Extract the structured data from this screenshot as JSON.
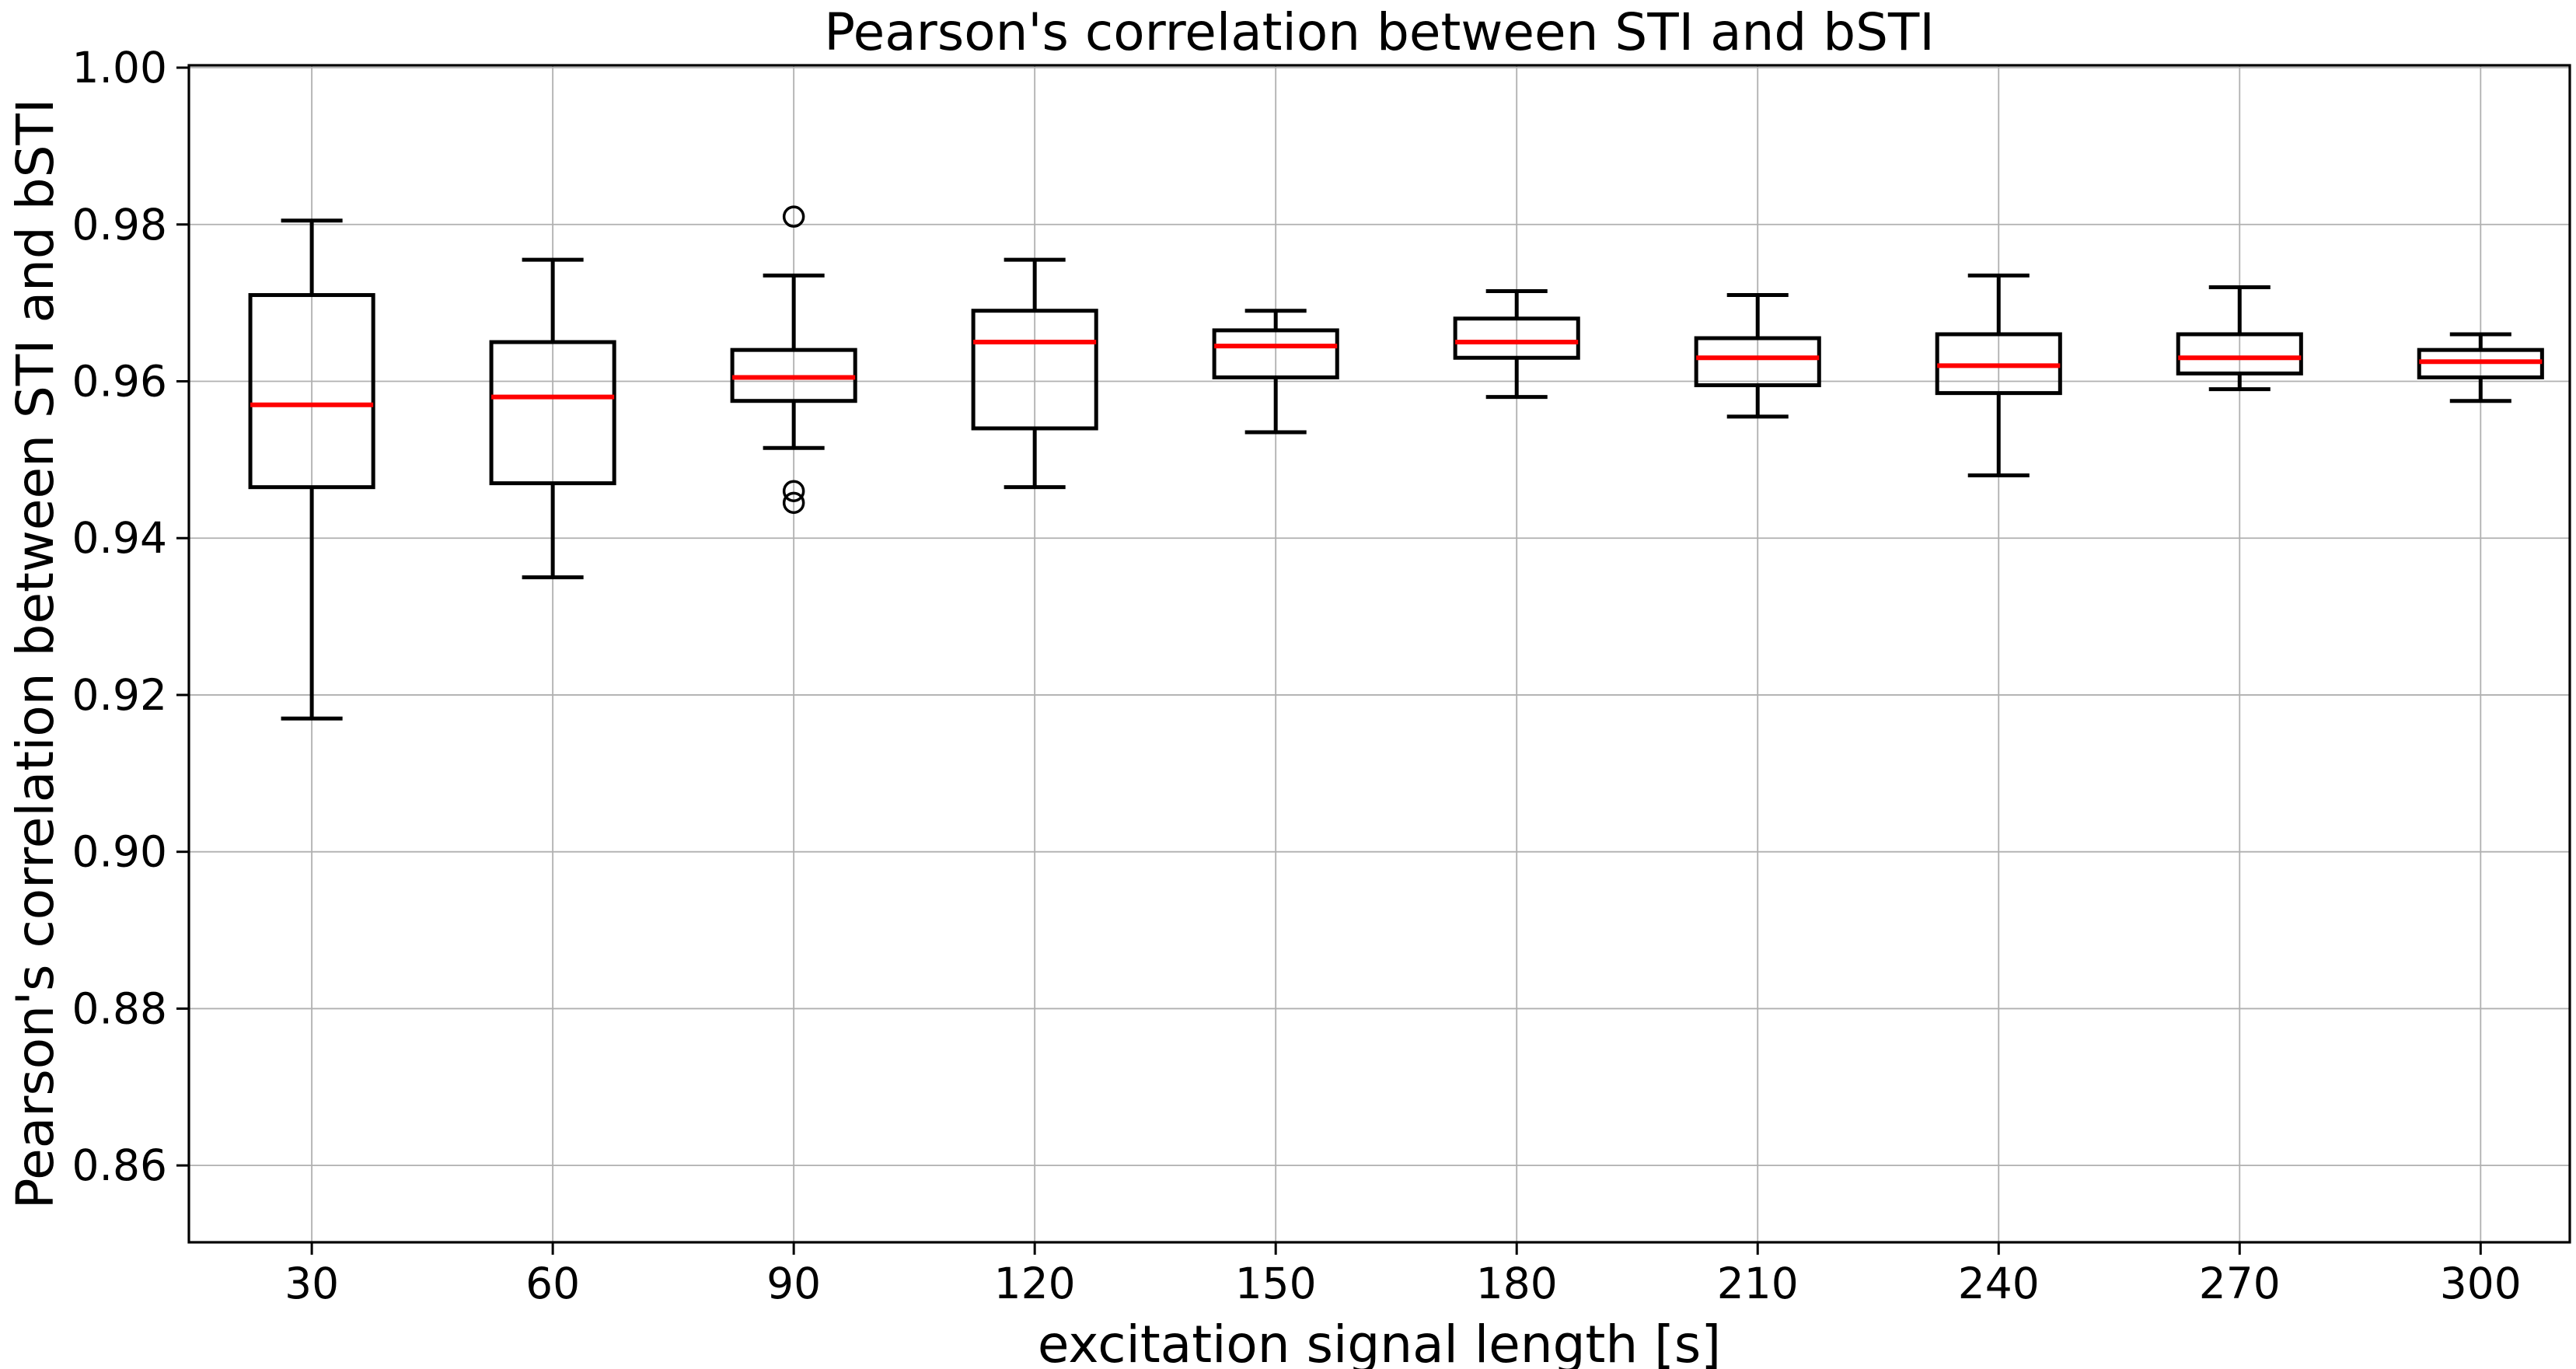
{
  "figure": {
    "background_color": "#ffffff",
    "plot_background_color": "#ffffff"
  },
  "colors": {
    "box_stroke": "#000000",
    "median_line": "#ff0000",
    "gridline": "#b0b0b0",
    "spine": "#000000",
    "text": "#000000"
  },
  "chart_data": {
    "type": "boxplot",
    "title": "Pearson's correlation between STI and bSTI",
    "xlabel": "excitation signal length [s]",
    "ylabel": "Pearson's correlation between STI and bSTI",
    "grid": true,
    "legend": null,
    "xlim": [
      14.7,
      311.1
    ],
    "ylim": [
      0.8502,
      1.0003
    ],
    "yticks": [
      0.86,
      0.88,
      0.9,
      0.92,
      0.94,
      0.96,
      0.98,
      1.0
    ],
    "ytick_labels": [
      "0.86",
      "0.88",
      "0.90",
      "0.92",
      "0.94",
      "0.96",
      "0.98",
      "1.00"
    ],
    "categories": [
      30,
      60,
      90,
      120,
      150,
      180,
      210,
      240,
      270,
      300
    ],
    "xtick_labels": [
      "30",
      "60",
      "90",
      "120",
      "150",
      "180",
      "210",
      "240",
      "270",
      "300"
    ],
    "box_width_data_units": 15.3,
    "boxes": [
      {
        "position": 30,
        "label": "30",
        "whislo": 0.917,
        "q1": 0.9465,
        "med": 0.957,
        "q3": 0.971,
        "whishi": 0.9805,
        "fliers": []
      },
      {
        "position": 60,
        "label": "60",
        "whislo": 0.935,
        "q1": 0.947,
        "med": 0.958,
        "q3": 0.965,
        "whishi": 0.9755,
        "fliers": []
      },
      {
        "position": 90,
        "label": "90",
        "whislo": 0.9515,
        "q1": 0.9575,
        "med": 0.9605,
        "q3": 0.964,
        "whishi": 0.9735,
        "fliers": [
          0.981,
          0.946,
          0.9445
        ]
      },
      {
        "position": 120,
        "label": "120",
        "whislo": 0.9465,
        "q1": 0.954,
        "med": 0.965,
        "q3": 0.969,
        "whishi": 0.9755,
        "fliers": []
      },
      {
        "position": 150,
        "label": "150",
        "whislo": 0.9535,
        "q1": 0.9605,
        "med": 0.9645,
        "q3": 0.9665,
        "whishi": 0.969,
        "fliers": []
      },
      {
        "position": 180,
        "label": "180",
        "whislo": 0.958,
        "q1": 0.963,
        "med": 0.965,
        "q3": 0.968,
        "whishi": 0.9715,
        "fliers": []
      },
      {
        "position": 210,
        "label": "210",
        "whislo": 0.9555,
        "q1": 0.9595,
        "med": 0.963,
        "q3": 0.9655,
        "whishi": 0.971,
        "fliers": []
      },
      {
        "position": 240,
        "label": "240",
        "whislo": 0.948,
        "q1": 0.9585,
        "med": 0.962,
        "q3": 0.966,
        "whishi": 0.9735,
        "fliers": []
      },
      {
        "position": 270,
        "label": "270",
        "whislo": 0.959,
        "q1": 0.961,
        "med": 0.963,
        "q3": 0.966,
        "whishi": 0.972,
        "fliers": []
      },
      {
        "position": 300,
        "label": "300",
        "whislo": 0.9575,
        "q1": 0.9605,
        "med": 0.9625,
        "q3": 0.964,
        "whishi": 0.966,
        "fliers": []
      }
    ]
  }
}
